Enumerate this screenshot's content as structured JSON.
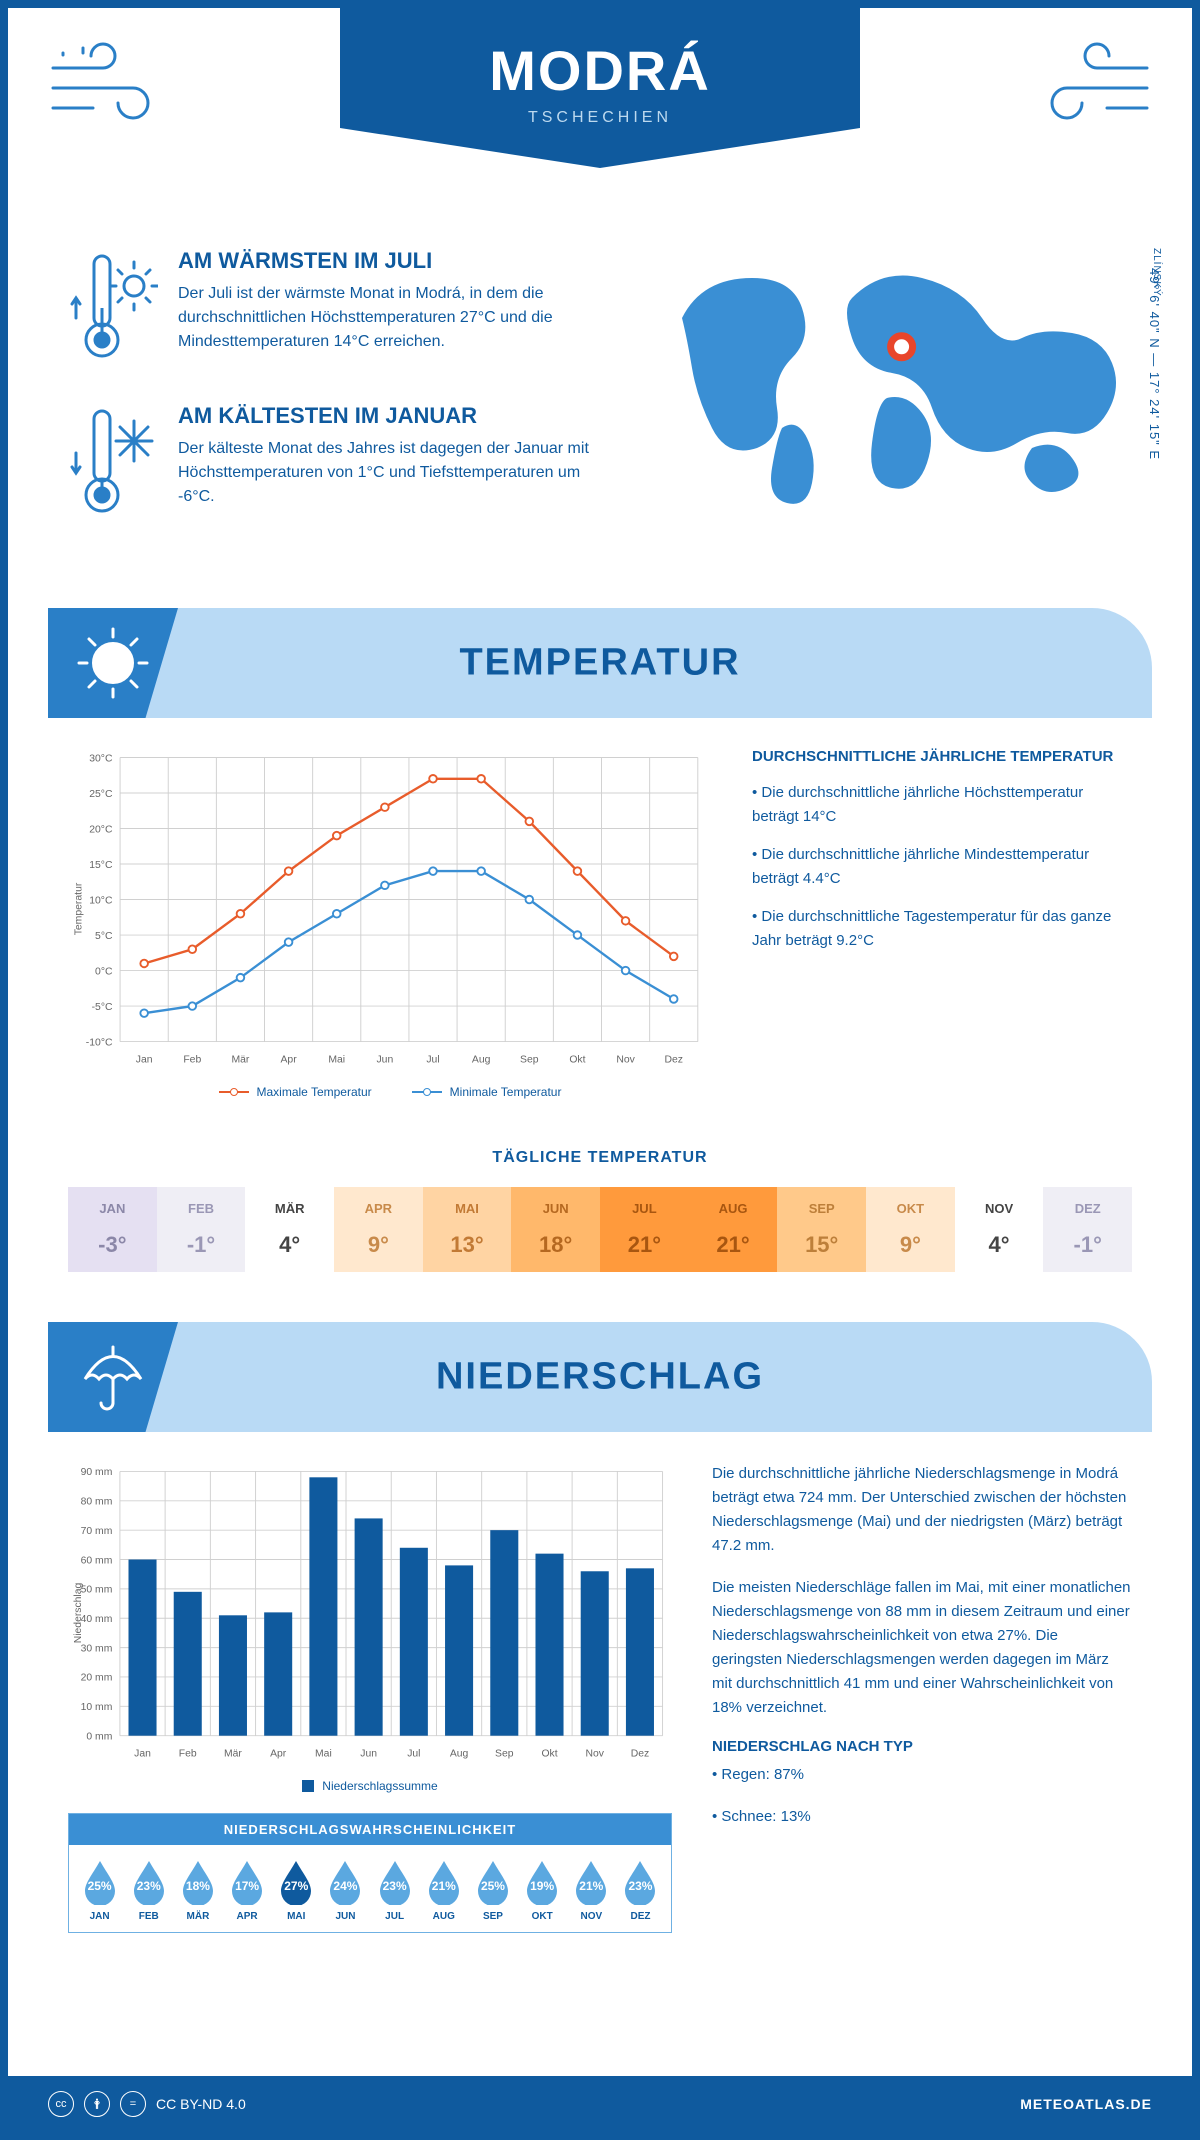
{
  "colors": {
    "primary": "#0f5a9e",
    "accent": "#2a7fc7",
    "light": "#b9daf5",
    "max_line": "#e85c2b",
    "min_line": "#3a8fd4",
    "grid": "#d0d0d0"
  },
  "header": {
    "title": "MODRÁ",
    "subtitle": "TSCHECHIEN"
  },
  "location": {
    "region": "ZLÍNSKÝ",
    "coords": "49° 6' 40\" N — 17° 24' 15\" E",
    "marker": {
      "cx_pct": 52,
      "cy_pct": 38
    }
  },
  "intro": {
    "warm": {
      "title": "AM WÄRMSTEN IM JULI",
      "text": "Der Juli ist der wärmste Monat in Modrá, in dem die durchschnittlichen Höchsttemperaturen 27°C und die Mindesttemperaturen 14°C erreichen."
    },
    "cold": {
      "title": "AM KÄLTESTEN IM JANUAR",
      "text": "Der kälteste Monat des Jahres ist dagegen der Januar mit Höchsttemperaturen von 1°C und Tiefsttemperaturen um -6°C."
    }
  },
  "sections": {
    "temperature": "TEMPERATUR",
    "precipitation": "NIEDERSCHLAG"
  },
  "temp_chart": {
    "months": [
      "Jan",
      "Feb",
      "Mär",
      "Apr",
      "Mai",
      "Jun",
      "Jul",
      "Aug",
      "Sep",
      "Okt",
      "Nov",
      "Dez"
    ],
    "max_values": [
      1,
      3,
      8,
      14,
      19,
      23,
      27,
      27,
      21,
      14,
      7,
      2
    ],
    "min_values": [
      -6,
      -5,
      -1,
      4,
      8,
      12,
      14,
      14,
      10,
      5,
      0,
      -4
    ],
    "ylabel": "Temperatur",
    "ylim": [
      -10,
      30
    ],
    "ytick_step": 5,
    "legend_max": "Maximale Temperatur",
    "legend_min": "Minimale Temperatur",
    "max_color": "#e85c2b",
    "min_color": "#3a8fd4",
    "line_width": 2.5,
    "marker_size": 4
  },
  "temp_info": {
    "title": "DURCHSCHNITTLICHE JÄHRLICHE TEMPERATUR",
    "b1": "• Die durchschnittliche jährliche Höchsttemperatur beträgt 14°C",
    "b2": "• Die durchschnittliche jährliche Mindesttemperatur beträgt 4.4°C",
    "b3": "• Die durchschnittliche Tagestemperatur für das ganze Jahr beträgt 9.2°C"
  },
  "daily": {
    "title": "TÄGLICHE TEMPERATUR",
    "months": [
      "JAN",
      "FEB",
      "MÄR",
      "APR",
      "MAI",
      "JUN",
      "JUL",
      "AUG",
      "SEP",
      "OKT",
      "NOV",
      "DEZ"
    ],
    "values": [
      "-3°",
      "-1°",
      "4°",
      "9°",
      "13°",
      "18°",
      "21°",
      "21°",
      "15°",
      "9°",
      "4°",
      "-1°"
    ],
    "bg_colors": [
      "#e5e0f2",
      "#efeef5",
      "#ffffff",
      "#ffe8ce",
      "#ffd4a3",
      "#ffb86b",
      "#ff9a3c",
      "#ff9a3c",
      "#ffc98a",
      "#ffe8ce",
      "#ffffff",
      "#efeef5"
    ],
    "text_colors": [
      "#8b87a8",
      "#9a97b5",
      "#444",
      "#c88a4a",
      "#c27a35",
      "#b56820",
      "#a85610",
      "#a85610",
      "#bd7f3a",
      "#c88a4a",
      "#444",
      "#9a97b5"
    ]
  },
  "precip_chart": {
    "months": [
      "Jan",
      "Feb",
      "Mär",
      "Apr",
      "Mai",
      "Jun",
      "Jul",
      "Aug",
      "Sep",
      "Okt",
      "Nov",
      "Dez"
    ],
    "values": [
      60,
      49,
      41,
      42,
      88,
      74,
      64,
      58,
      70,
      62,
      56,
      57
    ],
    "ylabel": "Niederschlag",
    "ylim": [
      0,
      90
    ],
    "ytick_step": 10,
    "bar_color": "#0f5a9e",
    "legend": "Niederschlagssumme",
    "bar_width_ratio": 0.62
  },
  "precip_text": {
    "p1": "Die durchschnittliche jährliche Niederschlagsmenge in Modrá beträgt etwa 724 mm. Der Unterschied zwischen der höchsten Niederschlagsmenge (Mai) und der niedrigsten (März) beträgt 47.2 mm.",
    "p2": "Die meisten Niederschläge fallen im Mai, mit einer monatlichen Niederschlagsmenge von 88 mm in diesem Zeitraum und einer Niederschlagswahrscheinlichkeit von etwa 27%. Die geringsten Niederschlagsmengen werden dagegen im März mit durchschnittlich 41 mm und einer Wahrscheinlichkeit von 18% verzeichnet.",
    "type_title": "NIEDERSCHLAG NACH TYP",
    "type_rain": "• Regen: 87%",
    "type_snow": "• Schnee: 13%"
  },
  "prob": {
    "title": "NIEDERSCHLAGSWAHRSCHEINLICHKEIT",
    "months": [
      "JAN",
      "FEB",
      "MÄR",
      "APR",
      "MAI",
      "JUN",
      "JUL",
      "AUG",
      "SEP",
      "OKT",
      "NOV",
      "DEZ"
    ],
    "values": [
      "25%",
      "23%",
      "18%",
      "17%",
      "27%",
      "24%",
      "23%",
      "21%",
      "25%",
      "19%",
      "21%",
      "23%"
    ],
    "highlight_index": 4,
    "drop_light": "#5ba8e0",
    "drop_dark": "#0f5a9e"
  },
  "footer": {
    "license": "CC BY-ND 4.0",
    "site": "METEOATLAS.DE"
  }
}
